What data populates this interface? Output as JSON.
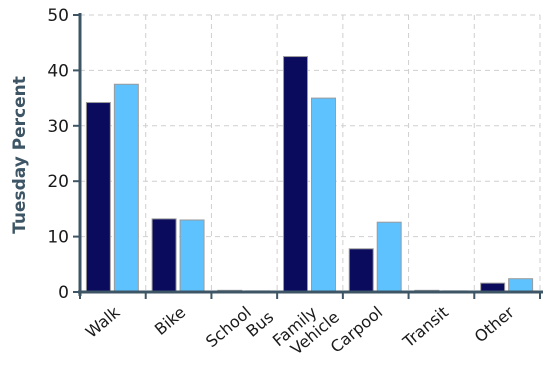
{
  "chart_data": {
    "type": "bar",
    "title": "",
    "xlabel": "",
    "ylabel": "Tuesday Percent",
    "ylim": [
      0,
      50
    ],
    "yticks": [
      0,
      10,
      20,
      30,
      40,
      50
    ],
    "grid": true,
    "legend": "none",
    "categories": [
      [
        "Walk"
      ],
      [
        "Bike"
      ],
      [
        "School",
        "Bus"
      ],
      [
        "Family",
        "Vehicle"
      ],
      [
        "Carpool"
      ],
      [
        "Transit"
      ],
      [
        "Other"
      ]
    ],
    "series": [
      {
        "values": [
          34.2,
          13.2,
          0.3,
          42.5,
          7.8,
          0.3,
          1.6
        ]
      },
      {
        "values": [
          37.5,
          13.0,
          0.2,
          35.0,
          12.6,
          0.2,
          2.4
        ]
      }
    ],
    "colors": {
      "series": [
        "#0b0b5e",
        "#5ec2ff"
      ],
      "axis": "#3d5565",
      "grid": "#cfcfcf",
      "bar_edge": "#9a9a9a"
    }
  }
}
